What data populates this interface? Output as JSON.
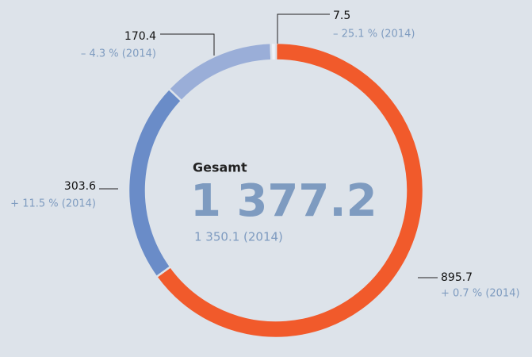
{
  "chart_data": {
    "type": "donut",
    "categories": [
      null,
      null,
      null,
      null
    ],
    "values": [
      895.7,
      303.6,
      170.4,
      7.5
    ],
    "colors": [
      "#f15a2b",
      "#6a8cc8",
      "#9aaed8",
      "#eef2f8"
    ],
    "change_labels": [
      "+ 0.7 % (2014)",
      "+ 11.5 % (2014)",
      "– 4.3 % (2014)",
      "– 25.1 % (2014)"
    ],
    "center_title": "Gesamt",
    "total_label": "1 377.2",
    "previous_total_label": "1 350.1 (2014)"
  }
}
